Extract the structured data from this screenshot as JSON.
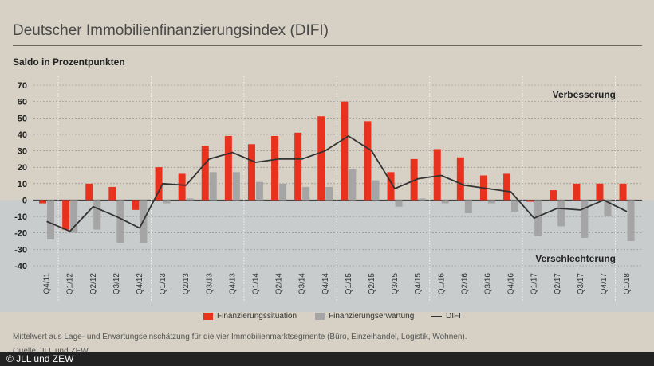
{
  "title": "Deutscher Immobilienfinanzierungsindex (DIFI)",
  "subtitle": "Saldo in Prozentpunkten",
  "legend": {
    "situation": "Finanzierungssituation",
    "expectation": "Finanzierungserwartung",
    "difi": "DIFI"
  },
  "annotations": {
    "positive": "Verbesserung",
    "negative": "Verschlechterung"
  },
  "footnote": "Mittelwert aus Lage- und Erwartungseinschätzung für die vier Immobilienmarktsegmente (Büro, Einzelhandel, Logistik, Wohnen).",
  "source": "Quelle: JLL und ZEW",
  "copyright": "© JLL und ZEW",
  "colors": {
    "situation": "#e8321e",
    "expectation": "#a5a5a5",
    "difi": "#333333",
    "positive_bg": "#d6d1c4",
    "negative_bg": "#c9cccc"
  },
  "chart_data": {
    "type": "bar",
    "categories": [
      "Q4/11",
      "Q1/12",
      "Q2/12",
      "Q3/12",
      "Q4/12",
      "Q1/13",
      "Q2/13",
      "Q3/13",
      "Q4/13",
      "Q1/14",
      "Q2/14",
      "Q3/14",
      "Q4/14",
      "Q1/15",
      "Q2/15",
      "Q3/15",
      "Q4/15",
      "Q1/16",
      "Q2/16",
      "Q3/16",
      "Q4/16",
      "Q1/17",
      "Q2/17",
      "Q3/17",
      "Q4/17",
      "Q1/18"
    ],
    "series": [
      {
        "name": "Finanzierungssituation",
        "type": "bar",
        "values": [
          -2,
          -18,
          10,
          8,
          -6,
          20,
          16,
          33,
          39,
          34,
          39,
          41,
          51,
          60,
          48,
          17,
          25,
          31,
          26,
          15,
          16,
          -1,
          6,
          10,
          10,
          10
        ]
      },
      {
        "name": "Finanzierungserwartung",
        "type": "bar",
        "values": [
          -24,
          -20,
          -18,
          -26,
          -26,
          -2,
          1,
          17,
          17,
          11,
          10,
          8,
          8,
          19,
          12,
          -4,
          1,
          -2,
          -8,
          -2,
          -7,
          -22,
          -16,
          -23,
          -10,
          -25
        ]
      },
      {
        "name": "DIFI",
        "type": "line",
        "values": [
          -13,
          -19,
          -4,
          -10,
          -17,
          10,
          9,
          25,
          29,
          23,
          25,
          25,
          30,
          39,
          30,
          7,
          13,
          15,
          9,
          7,
          5,
          -11,
          -5,
          -6,
          0,
          -7
        ]
      }
    ],
    "ylim": [
      -40,
      70
    ],
    "yticks": [
      70,
      60,
      50,
      40,
      30,
      20,
      10,
      0,
      -10,
      -20,
      -30,
      -40
    ],
    "year_separators_after": [
      "Q4/11",
      "Q4/12",
      "Q4/13",
      "Q4/14",
      "Q4/15",
      "Q4/16",
      "Q4/17"
    ],
    "grid": true,
    "xlabel": "",
    "ylabel": "Saldo in Prozentpunkten"
  }
}
